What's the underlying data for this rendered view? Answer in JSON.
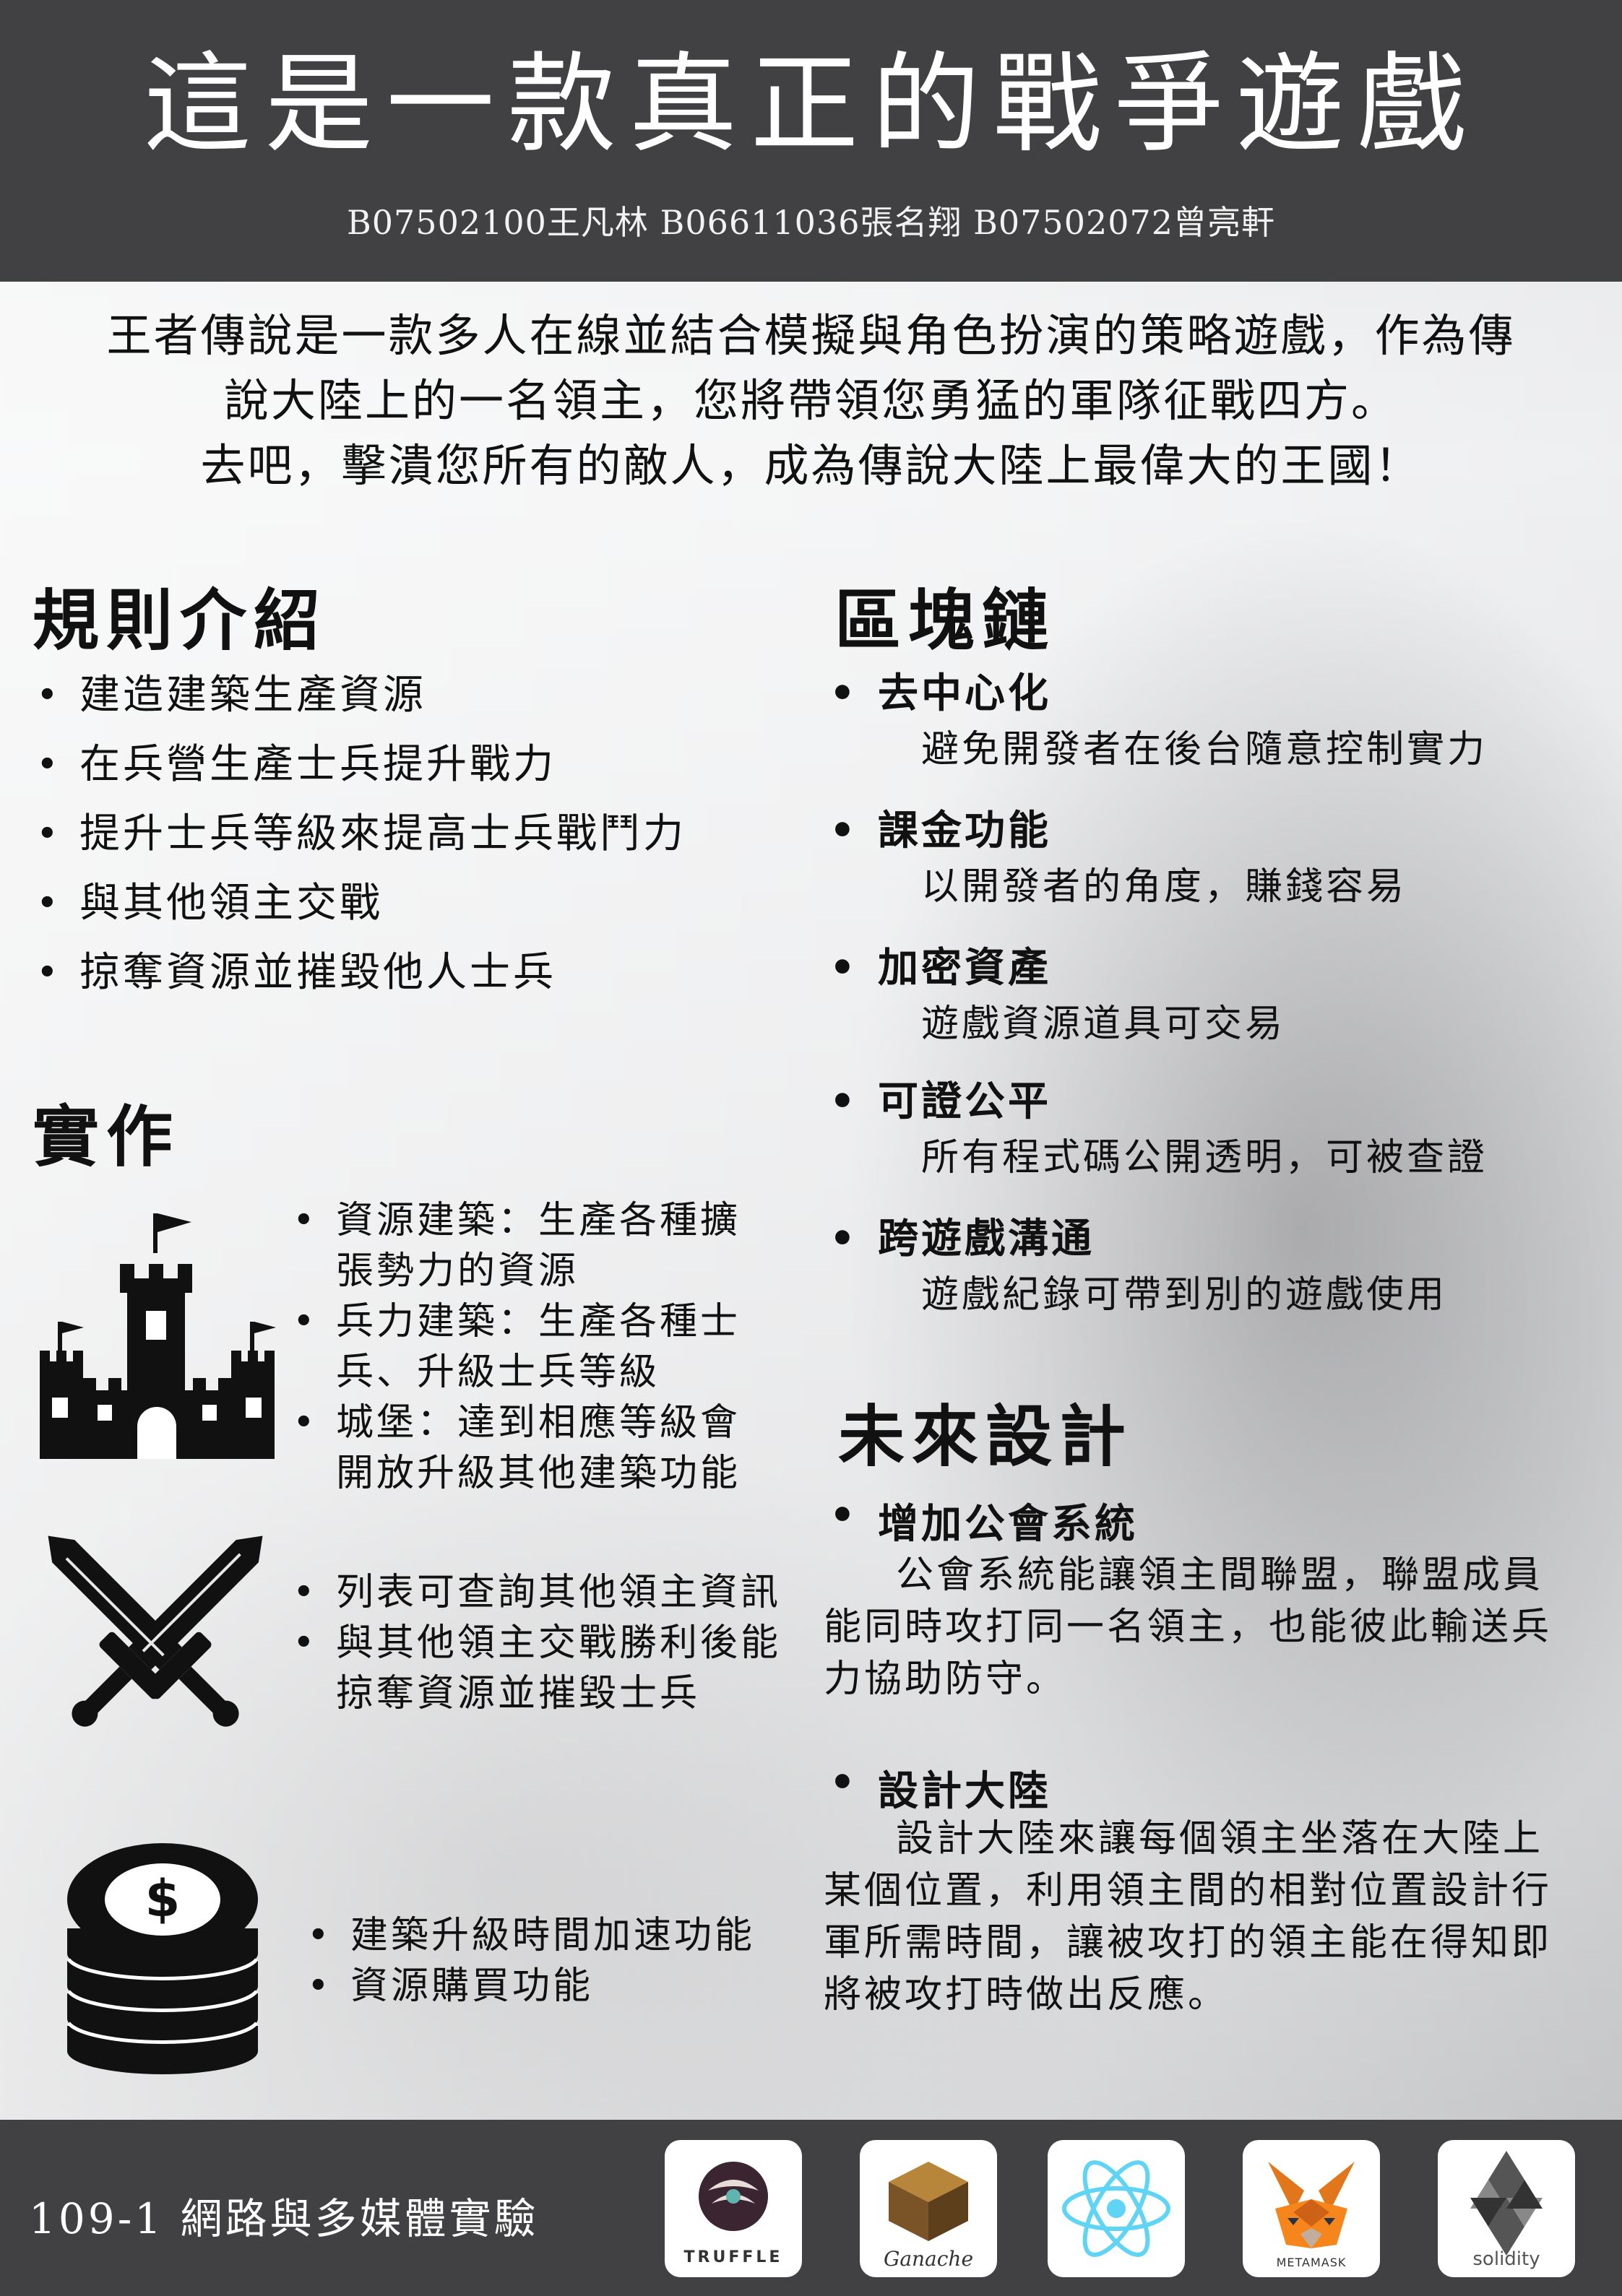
{
  "header": {
    "title": "這是一款真正的戰爭遊戲",
    "authors": "B07502100王凡林  B06611036張名翔 B07502072曾亮軒"
  },
  "intro": {
    "line1": "王者傳說是一款多人在線並結合模擬與角色扮演的策略遊戲，作為傳",
    "line2": "說大陸上的一名領主，您將帶領您勇猛的軍隊征戰四方。",
    "line3": "去吧，擊潰您所有的敵人，成為傳說大陸上最偉大的王國！"
  },
  "rules": {
    "heading": "規則介紹",
    "items": [
      "建造建築生產資源",
      "在兵營生產士兵提升戰力",
      "提升士兵等級來提高士兵戰鬥力",
      "與其他領主交戰",
      "掠奪資源並摧毀他人士兵"
    ]
  },
  "blockchain": {
    "heading": "區塊鏈",
    "items": [
      {
        "title": "去中心化",
        "desc": "避免開發者在後台隨意控制實力"
      },
      {
        "title": "課金功能",
        "desc": "以開發者的角度，賺錢容易"
      },
      {
        "title": "加密資產",
        "desc": "遊戲資源道具可交易"
      },
      {
        "title": "可證公平",
        "desc": "所有程式碼公開透明，可被查證"
      },
      {
        "title": "跨遊戲溝通",
        "desc": "遊戲紀錄可帶到別的遊戲使用"
      }
    ]
  },
  "implementation": {
    "heading": "實作",
    "castle_items": [
      "資源建築：生產各種擴張勢力的資源",
      "兵力建築：生產各種士兵、升級士兵等級",
      "城堡：達到相應等級會開放升級其他建築功能"
    ],
    "sword_items": [
      "列表可查詢其他領主資訊",
      "與其他領主交戰勝利後能掠奪資源並摧毀士兵"
    ],
    "coin_items": [
      "建築升級時間加速功能",
      "資源購買功能"
    ],
    "icons": [
      "castle-icon",
      "crossed-swords-icon",
      "coin-stack-icon"
    ]
  },
  "future": {
    "heading": "未來設計",
    "items": [
      {
        "title": "增加公會系統",
        "desc": "公會系統能讓領主間聯盟，聯盟成員能同時攻打同一名領主，也能彼此輸送兵力協助防守。"
      },
      {
        "title": "設計大陸",
        "desc": "設計大陸來讓每個領主坐落在大陸上某個位置，利用領主間的相對位置設計行軍所需時間，讓被攻打的領主能在得知即將被攻打時做出反應。"
      }
    ]
  },
  "footer": {
    "course": "109-1  網路與多媒體實驗",
    "logos": [
      {
        "name": "truffle-logo",
        "label": "TRUFFLE"
      },
      {
        "name": "ganache-logo",
        "label": "Ganache"
      },
      {
        "name": "react-logo",
        "label": ""
      },
      {
        "name": "metamask-logo",
        "label": "METAMASK"
      },
      {
        "name": "solidity-logo",
        "label": "solidity"
      }
    ]
  },
  "colors": {
    "header_bg": "#414042",
    "footer_bg": "#414042",
    "text": "#111111"
  }
}
